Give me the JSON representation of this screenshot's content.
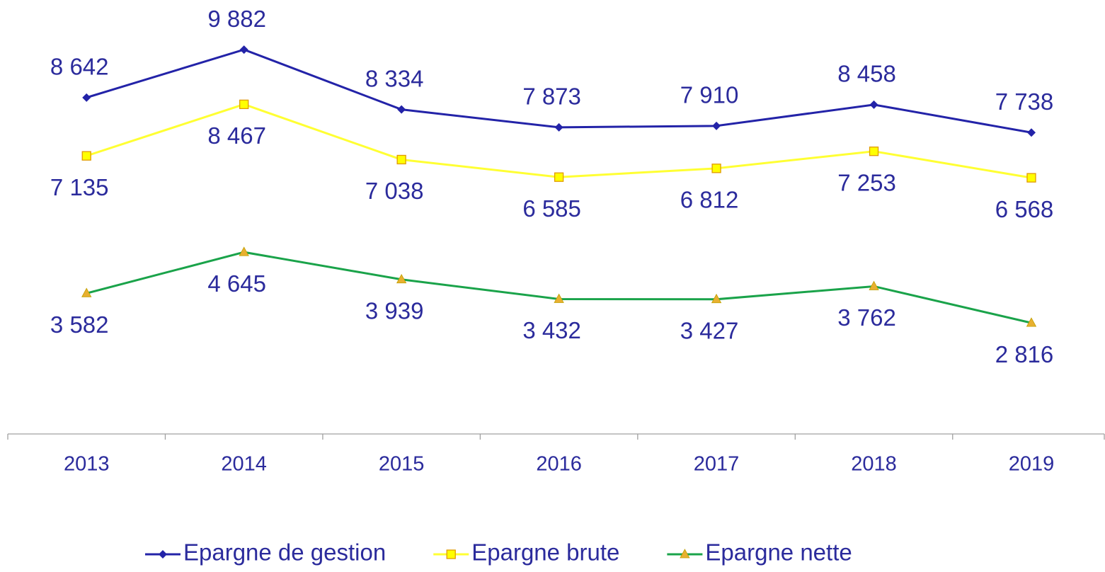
{
  "chart_data": {
    "type": "line",
    "categories": [
      "2013",
      "2014",
      "2015",
      "2016",
      "2017",
      "2018",
      "2019"
    ],
    "series": [
      {
        "name": "Epargne de gestion",
        "color": "#2323a8",
        "marker": "diamond",
        "marker_color": "#2323a8",
        "values": [
          8642,
          9882,
          8334,
          7873,
          7910,
          8458,
          7738
        ],
        "value_labels": [
          "8 642",
          "9 882",
          "8 334",
          "7 873",
          "7 910",
          "8 458",
          "7 738"
        ]
      },
      {
        "name": "Epargne brute",
        "color": "#ffff33",
        "marker": "square",
        "marker_color": "#ffff00",
        "values": [
          7135,
          8467,
          7038,
          6585,
          6812,
          7253,
          6568
        ],
        "value_labels": [
          "7 135",
          "8 467",
          "7 038",
          "6 585",
          "6 812",
          "7 253",
          "6 568"
        ]
      },
      {
        "name": "Epargne nette",
        "color": "#1aa34a",
        "marker": "triangle",
        "marker_color": "#e8b030",
        "values": [
          3582,
          4645,
          3939,
          3432,
          3427,
          3762,
          2816
        ],
        "value_labels": [
          "3 582",
          "4 645",
          "3 939",
          "3 432",
          "3 427",
          "3 762",
          "2 816"
        ]
      }
    ],
    "ylim": [
      0,
      11000
    ]
  }
}
